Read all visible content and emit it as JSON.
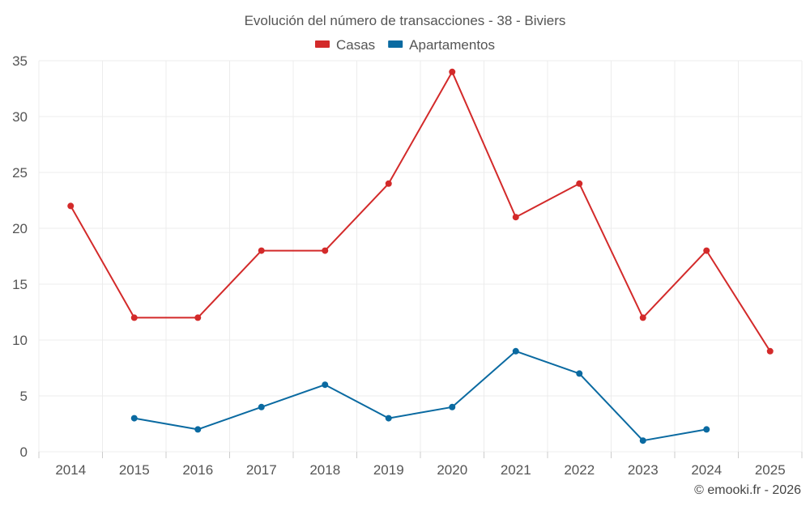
{
  "chart_data": {
    "type": "line",
    "title": "Evolución del número de transacciones - 38 - Biviers",
    "x": [
      "2014",
      "2015",
      "2016",
      "2017",
      "2018",
      "2019",
      "2020",
      "2021",
      "2022",
      "2023",
      "2024",
      "2025"
    ],
    "ylim": [
      0,
      35
    ],
    "yticks": [
      "0",
      "5",
      "10",
      "15",
      "20",
      "25",
      "30",
      "35"
    ],
    "grid": true,
    "legend_position": "top-center",
    "series": [
      {
        "name": "Casas",
        "color": "#d32a2a",
        "values": [
          22,
          12,
          12,
          18,
          18,
          24,
          34,
          21,
          24,
          12,
          18,
          9
        ]
      },
      {
        "name": "Apartamentos",
        "color": "#0a6aa1",
        "values": [
          null,
          3,
          2,
          4,
          6,
          3,
          4,
          9,
          7,
          1,
          2,
          null
        ]
      }
    ]
  },
  "credit": "© emooki.fr - 2026"
}
